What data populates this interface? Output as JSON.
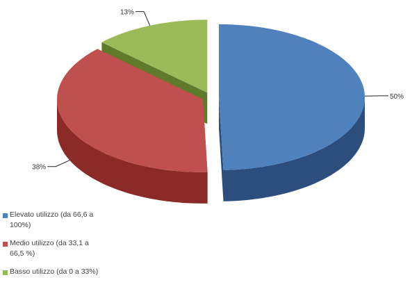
{
  "chart_data": {
    "type": "pie",
    "title": "",
    "slices": [
      {
        "label": "Elevato utilizzo (da 66,6 a\n100%)",
        "value": 50,
        "value_label": "50%",
        "color": "#4F81BD",
        "side_color": "#2B4E7E"
      },
      {
        "label": "Medio utilizzo (da 33,1 a\n66,5 %)",
        "value": 38,
        "value_label": "38%",
        "color": "#C0504D",
        "side_color": "#8C2A27"
      },
      {
        "label": "Basso utilizzo (da 0 a 33%)",
        "value": 13,
        "value_label": "13%",
        "color": "#9BBB59",
        "side_color": "#5E7A2A"
      }
    ],
    "legend_position": "bottom-left",
    "style": "3d-exploded"
  }
}
